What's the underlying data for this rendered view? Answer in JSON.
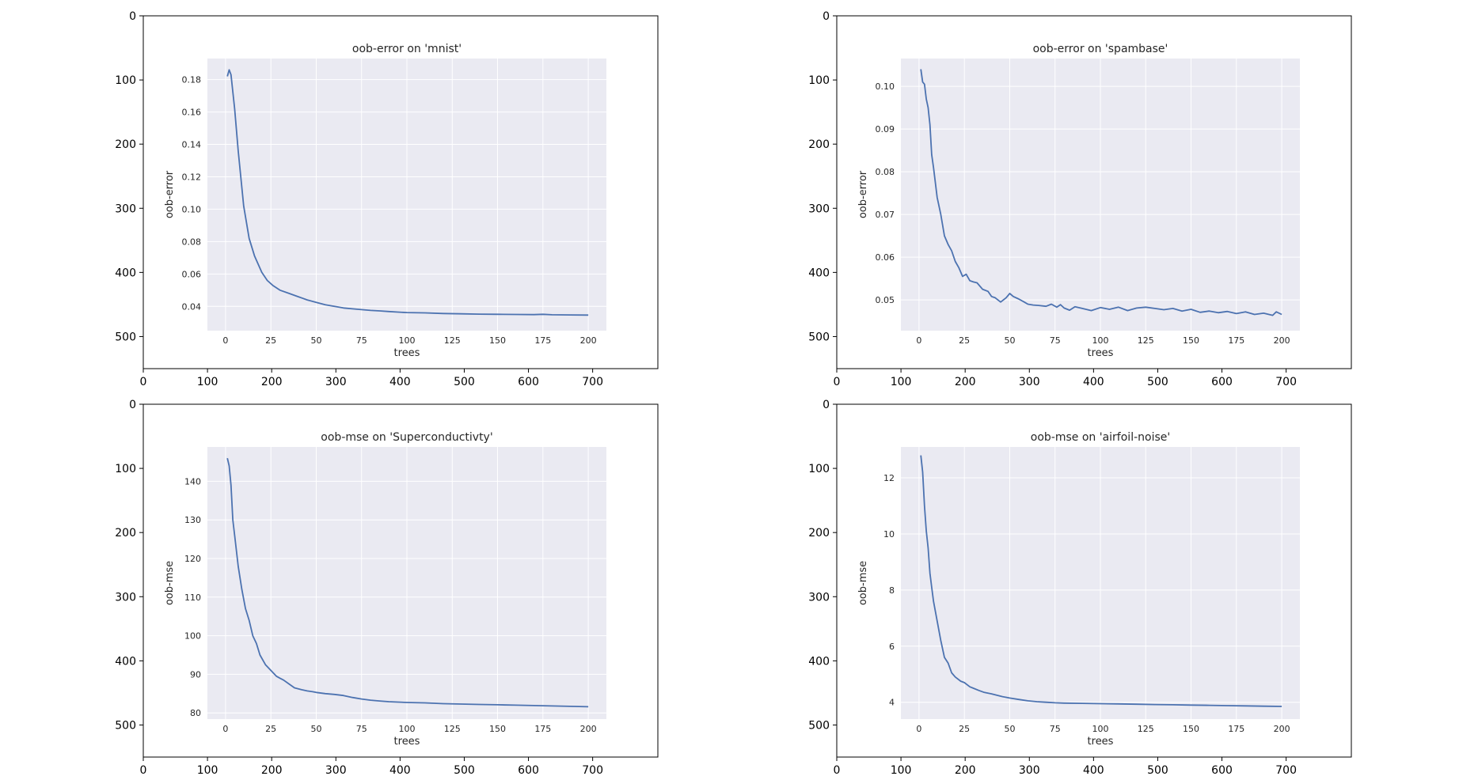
{
  "chart_data": [
    {
      "type": "line",
      "title": "oob-error on 'mnist'",
      "xlabel": "trees",
      "ylabel": "oob-error",
      "xlim": [
        -10,
        210
      ],
      "ylim": [
        0.025,
        0.193
      ],
      "xticks": [
        0,
        25,
        50,
        75,
        100,
        125,
        150,
        175,
        200
      ],
      "yticks": [
        0.04,
        0.06,
        0.08,
        0.1,
        0.12,
        0.14,
        0.16,
        0.18
      ],
      "ytick_labels": [
        "0.04",
        "0.06",
        "0.08",
        "0.10",
        "0.12",
        "0.14",
        "0.16",
        "0.18"
      ],
      "grid": true,
      "series": [
        {
          "color": "#4c72b0",
          "x": [
            1,
            2,
            3,
            5,
            7,
            10,
            13,
            16,
            20,
            23,
            26,
            30,
            35,
            40,
            45,
            50,
            55,
            60,
            65,
            70,
            75,
            80,
            85,
            90,
            95,
            100,
            110,
            120,
            130,
            140,
            150,
            160,
            170,
            175,
            180,
            190,
            200
          ],
          "y": [
            0.182,
            0.186,
            0.183,
            0.162,
            0.136,
            0.102,
            0.082,
            0.071,
            0.061,
            0.056,
            0.053,
            0.05,
            0.048,
            0.046,
            0.044,
            0.0425,
            0.041,
            0.04,
            0.039,
            0.0385,
            0.038,
            0.0375,
            0.0372,
            0.0368,
            0.0365,
            0.0362,
            0.036,
            0.0356,
            0.0354,
            0.0352,
            0.0351,
            0.035,
            0.0349,
            0.0351,
            0.0348,
            0.0347,
            0.0346
          ]
        }
      ]
    },
    {
      "type": "line",
      "title": "oob-error on 'spambase'",
      "xlabel": "trees",
      "ylabel": "oob-error",
      "xlim": [
        -10,
        210
      ],
      "ylim": [
        0.0428,
        0.1065
      ],
      "xticks": [
        0,
        25,
        50,
        75,
        100,
        125,
        150,
        175,
        200
      ],
      "yticks": [
        0.05,
        0.06,
        0.07,
        0.08,
        0.09,
        0.1
      ],
      "ytick_labels": [
        "0.05",
        "0.06",
        "0.07",
        "0.08",
        "0.09",
        "0.10"
      ],
      "grid": true,
      "series": [
        {
          "color": "#4c72b0",
          "x": [
            1,
            2,
            3,
            4,
            5,
            6,
            7,
            8,
            10,
            12,
            14,
            16,
            18,
            20,
            22,
            24,
            26,
            28,
            30,
            32,
            35,
            38,
            40,
            42,
            45,
            48,
            50,
            52,
            55,
            58,
            60,
            63,
            66,
            70,
            73,
            76,
            78,
            80,
            83,
            86,
            90,
            95,
            100,
            105,
            110,
            115,
            120,
            125,
            130,
            135,
            140,
            145,
            150,
            155,
            160,
            165,
            170,
            175,
            180,
            185,
            190,
            195,
            197,
            200
          ],
          "y": [
            0.104,
            0.101,
            0.1005,
            0.097,
            0.095,
            0.091,
            0.084,
            0.081,
            0.074,
            0.07,
            0.065,
            0.063,
            0.0615,
            0.059,
            0.0575,
            0.0555,
            0.056,
            0.0545,
            0.0542,
            0.054,
            0.0525,
            0.052,
            0.0508,
            0.0505,
            0.0495,
            0.0505,
            0.0515,
            0.0508,
            0.0502,
            0.0495,
            0.049,
            0.0488,
            0.0487,
            0.0485,
            0.049,
            0.0483,
            0.0489,
            0.0481,
            0.0476,
            0.0484,
            0.048,
            0.0475,
            0.0482,
            0.0478,
            0.0483,
            0.0475,
            0.0481,
            0.0483,
            0.048,
            0.0477,
            0.048,
            0.0474,
            0.0478,
            0.0471,
            0.0474,
            0.047,
            0.0473,
            0.0468,
            0.0472,
            0.0466,
            0.0469,
            0.0464,
            0.0472,
            0.0466
          ]
        }
      ]
    },
    {
      "type": "line",
      "title": "oob-mse on 'Superconductivty'",
      "xlabel": "trees",
      "ylabel": "oob-mse",
      "xlim": [
        -10,
        210
      ],
      "ylim": [
        78.4,
        148.9
      ],
      "xticks": [
        0,
        25,
        50,
        75,
        100,
        125,
        150,
        175,
        200
      ],
      "yticks": [
        80,
        90,
        100,
        110,
        120,
        130,
        140
      ],
      "ytick_labels": [
        "80",
        "90",
        "100",
        "110",
        "120",
        "130",
        "140"
      ],
      "grid": true,
      "series": [
        {
          "color": "#4c72b0",
          "x": [
            1,
            2,
            3,
            4,
            5,
            7,
            9,
            11,
            13,
            15,
            17,
            19,
            22,
            25,
            28,
            30,
            32,
            35,
            38,
            42,
            45,
            48,
            50,
            55,
            60,
            65,
            70,
            75,
            80,
            85,
            90,
            95,
            100,
            110,
            120,
            130,
            140,
            150,
            160,
            170,
            180,
            190,
            200
          ],
          "y": [
            146,
            144,
            139,
            130,
            126,
            118,
            112,
            107,
            104,
            100,
            98,
            95,
            92.5,
            91,
            89.5,
            89,
            88.5,
            87.5,
            86.5,
            86,
            85.7,
            85.5,
            85.3,
            85,
            84.8,
            84.5,
            84,
            83.6,
            83.3,
            83.1,
            82.9,
            82.8,
            82.7,
            82.6,
            82.4,
            82.3,
            82.2,
            82.1,
            82,
            81.9,
            81.8,
            81.7,
            81.6
          ]
        }
      ]
    },
    {
      "type": "line",
      "title": "oob-mse on 'airfoil-noise'",
      "xlabel": "trees",
      "ylabel": "oob-mse",
      "xlim": [
        -10,
        210
      ],
      "ylim": [
        3.4,
        13.1
      ],
      "xticks": [
        0,
        25,
        50,
        75,
        100,
        125,
        150,
        175,
        200
      ],
      "yticks": [
        4,
        6,
        8,
        10,
        12
      ],
      "ytick_labels": [
        "4",
        "6",
        "8",
        "10",
        "12"
      ],
      "grid": true,
      "series": [
        {
          "color": "#4c72b0",
          "x": [
            1,
            2,
            3,
            4,
            5,
            6,
            7,
            8,
            10,
            12,
            14,
            16,
            18,
            20,
            23,
            25,
            28,
            30,
            33,
            36,
            40,
            43,
            46,
            50,
            55,
            60,
            65,
            70,
            75,
            80,
            90,
            100,
            110,
            120,
            130,
            140,
            150,
            160,
            170,
            180,
            190,
            200
          ],
          "y": [
            12.8,
            12.2,
            11,
            10.1,
            9.5,
            8.6,
            8.1,
            7.6,
            6.9,
            6.2,
            5.6,
            5.4,
            5.05,
            4.9,
            4.75,
            4.7,
            4.55,
            4.5,
            4.42,
            4.35,
            4.3,
            4.25,
            4.2,
            4.15,
            4.1,
            4.05,
            4.02,
            4.0,
            3.98,
            3.97,
            3.96,
            3.95,
            3.94,
            3.93,
            3.92,
            3.91,
            3.9,
            3.89,
            3.88,
            3.87,
            3.86,
            3.85
          ]
        }
      ]
    }
  ],
  "outer_axes": {
    "xticks": [
      0,
      100,
      200,
      300,
      400,
      500,
      600,
      700
    ],
    "yticks": [
      0,
      100,
      200,
      300,
      400,
      500
    ]
  },
  "colors": {
    "plot_background": "#eaeaf2",
    "grid": "#ffffff",
    "line": "#4c72b0",
    "frame": "#000000"
  }
}
